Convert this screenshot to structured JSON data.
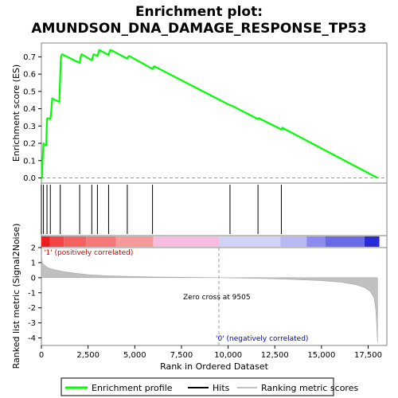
{
  "chart_data": {
    "type": "line",
    "title_line1": "Enrichment plot:",
    "title_line2": "AMUNDSON_DNA_DAMAGE_RESPONSE_TP53",
    "xlabel": "Rank in Ordered Dataset",
    "es_ylabel": "Enrichment score (ES)",
    "metric_ylabel": "Ranked list metric (Signal2Noise)",
    "xlim": [
      0,
      18500
    ],
    "es_ylim": [
      -0.03,
      0.78
    ],
    "metric_ylim": [
      -4.5,
      2
    ],
    "x_ticks": [
      0,
      2500,
      5000,
      7500,
      10000,
      12500,
      15000,
      17500
    ],
    "x_tick_labels": [
      "0",
      "2,500",
      "5,000",
      "7,500",
      "10,000",
      "12,500",
      "15,000",
      "17,500"
    ],
    "es_ticks": [
      0.0,
      0.1,
      0.2,
      0.3,
      0.4,
      0.5,
      0.6,
      0.7
    ],
    "es_tick_labels": [
      "0.0",
      "0.1",
      "0.2",
      "0.3",
      "0.4",
      "0.5",
      "0.6",
      "0.7"
    ],
    "metric_ticks": [
      2,
      1,
      0,
      -1,
      -2,
      -3,
      -4
    ],
    "metric_tick_labels": [
      "2",
      "1",
      "0",
      "-1",
      "-2",
      "-3",
      "-4"
    ],
    "series": [
      {
        "name": "Enrichment profile",
        "color": "#00ff00",
        "x": [
          0,
          30,
          60,
          110,
          180,
          260,
          300,
          330,
          480,
          520,
          580,
          640,
          960,
          990,
          1010,
          1030,
          1050,
          1100,
          2050,
          2100,
          2150,
          2700,
          2750,
          2800,
          3000,
          3050,
          3100,
          3600,
          3650,
          3700,
          4600,
          4650,
          4700,
          5950,
          6000,
          6050,
          10100,
          10150,
          11600,
          11650,
          12850,
          12900,
          18000
        ],
        "y": [
          0.0,
          0.0,
          0.1,
          0.2,
          0.19,
          0.19,
          0.34,
          0.345,
          0.34,
          0.38,
          0.46,
          0.455,
          0.44,
          0.53,
          0.6,
          0.66,
          0.7,
          0.715,
          0.665,
          0.7,
          0.715,
          0.68,
          0.7,
          0.715,
          0.705,
          0.72,
          0.74,
          0.71,
          0.73,
          0.74,
          0.69,
          0.7,
          0.705,
          0.63,
          0.64,
          0.645,
          0.42,
          0.42,
          0.34,
          0.345,
          0.28,
          0.29,
          0.0
        ]
      },
      {
        "name": "Ranking metric scores",
        "color": "#c0c0c0",
        "x": [
          0,
          50,
          150,
          300,
          500,
          800,
          1200,
          1800,
          2500,
          3500,
          4500,
          6000,
          7500,
          9000,
          9505,
          10500,
          12000,
          13500,
          15000,
          16000,
          16800,
          17300,
          17600,
          17800,
          17900,
          17950,
          18000
        ],
        "y": [
          1.5,
          1.0,
          0.85,
          0.7,
          0.6,
          0.5,
          0.4,
          0.3,
          0.2,
          0.13,
          0.1,
          0.05,
          0.03,
          0.01,
          0.0,
          -0.02,
          -0.06,
          -0.12,
          -0.2,
          -0.3,
          -0.45,
          -0.65,
          -0.9,
          -1.3,
          -2.0,
          -3.0,
          -4.3
        ]
      }
    ],
    "hits": [
      0,
      110,
      300,
      480,
      1010,
      2050,
      2700,
      3000,
      3600,
      4600,
      5950,
      10100,
      11600,
      12850
    ],
    "legend": [
      {
        "name": "Enrichment profile",
        "color": "#00ff00"
      },
      {
        "name": "Hits",
        "color": "#000000"
      },
      {
        "name": "Ranking metric scores",
        "color": "#c0c0c0"
      }
    ],
    "legend_position": "bottom",
    "annotations": {
      "positive_label": "'1' (positively correlated)",
      "negative_label": "'0' (negatively correlated)",
      "zero_cross_label": "Zero cross at 9505",
      "zero_cross": 9505,
      "positive_color": "#cc0000",
      "negative_color": "#0000cc"
    },
    "heat_bands": [
      {
        "from": 0,
        "to": 450,
        "color": "#ee1c1c"
      },
      {
        "from": 450,
        "to": 1200,
        "color": "#f34545"
      },
      {
        "from": 1200,
        "to": 2400,
        "color": "#f56060"
      },
      {
        "from": 2400,
        "to": 4000,
        "color": "#f67777"
      },
      {
        "from": 4000,
        "to": 6000,
        "color": "#f99a9a"
      },
      {
        "from": 6000,
        "to": 9505,
        "color": "#f7bde0"
      },
      {
        "from": 9505,
        "to": 12800,
        "color": "#d2d2f7"
      },
      {
        "from": 12800,
        "to": 14200,
        "color": "#b8b8f5"
      },
      {
        "from": 14200,
        "to": 15200,
        "color": "#8c8cf0"
      },
      {
        "from": 15200,
        "to": 17300,
        "color": "#6a6ae8"
      },
      {
        "from": 17300,
        "to": 18100,
        "color": "#2a2ad5"
      }
    ],
    "grid": false
  }
}
